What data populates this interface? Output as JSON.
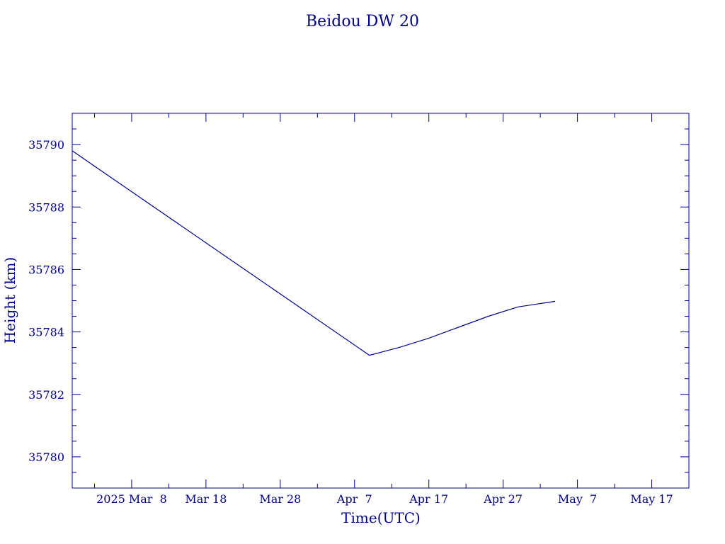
{
  "chart_data": {
    "type": "line",
    "title": "Beidou DW 20",
    "xlabel": "Time(UTC)",
    "ylabel": "Height (km)",
    "color": "#00008b",
    "grid": false,
    "x_tick_labels": [
      "2025 Mar  8",
      "Mar 18",
      "Mar 28",
      "Apr  7",
      "Apr 17",
      "Apr 27",
      "May  7",
      "May 17"
    ],
    "y_tick_labels": [
      "35780",
      "35782",
      "35784",
      "35786",
      "35788",
      "35790"
    ],
    "x_range": [
      "2025-02-28",
      "2025-05-22"
    ],
    "ylim": [
      35779,
      35791
    ],
    "series": [
      {
        "x": [
          "2025-02-28",
          "2025-04-09",
          "2025-04-13",
          "2025-04-17",
          "2025-04-21",
          "2025-04-25",
          "2025-04-29",
          "2025-05-04"
        ],
        "values": [
          35789.8,
          35783.25,
          35783.5,
          35783.8,
          35784.15,
          35784.5,
          35784.8,
          35784.98
        ]
      }
    ]
  }
}
